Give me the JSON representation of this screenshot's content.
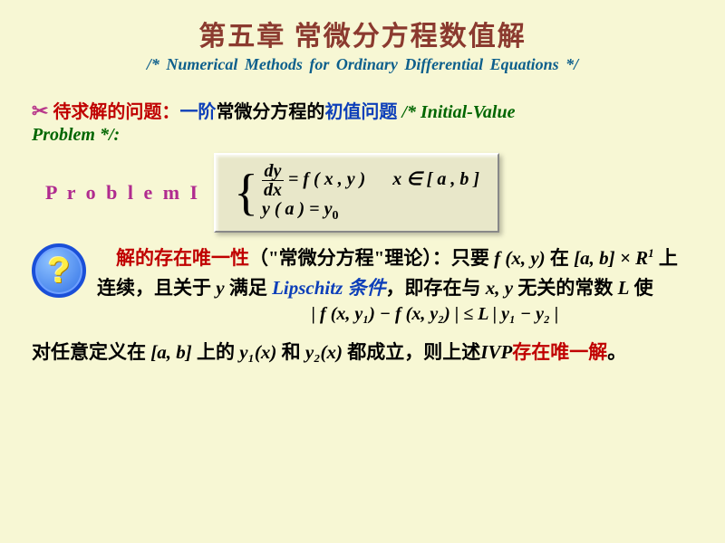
{
  "title": "第五章  常微分方程数值解",
  "subtitle": "/* Numerical  Methods  for  Ordinary  Differential  Equations */",
  "intro": {
    "scissors": "✂",
    "red1": "待求解的问题：",
    "blue1": "一阶",
    "black1": "常微分方程的",
    "blue2": "初值问题",
    "green_inline": " /* Initial-Value",
    "green_line2": "Problem */:"
  },
  "problem_label": "P r o b l e m  I",
  "equation": {
    "dy": "dy",
    "dx": "dx",
    "eq": " = ",
    "f": "f ( x , y )",
    "cond": "x ∈ [ a , b ]",
    "ya": "y ( a )  =  y",
    "zero": "0"
  },
  "qmark": "?",
  "existence": {
    "t1": "解的存在唯一性",
    "t2": "（\"常微分方程\"理论）：只要 ",
    "fxy": "f (x, y)",
    "t3": " 在 ",
    "abR": "[a, b] × R",
    "sup1": "1",
    "t4": " 上连续，且关于 ",
    "y": "y",
    "t5": " 满足 ",
    "lip": "Lipschitz 条件",
    "t6": "，即存在与 ",
    "xy": "x, y",
    "t7": " 无关的常数 ",
    "L": "L",
    "t8": " 使"
  },
  "lipschitz_ineq": "| f (x, y₁) − f (x, y₂) | ≤ L | y₁ − y₂ |",
  "final": {
    "t1": "对任意定义在 ",
    "ab": "[a, b]",
    "t2": " 上的 ",
    "y1": "y₁(x)",
    "t3": " 和 ",
    "y2": "y₂(x)",
    "t4": " 都成立，则上述",
    "ivp": "IVP",
    "red": "存在唯一解",
    "t5": "。"
  }
}
